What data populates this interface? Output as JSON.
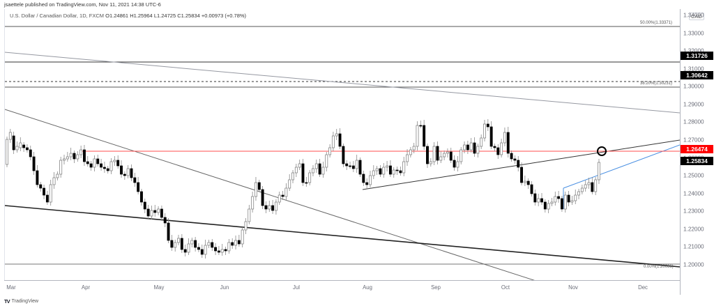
{
  "publisher": "jsaettele published on TradingView.com, Nov 11, 2021 14:38 UTC-6",
  "symbol": {
    "name": "U.S. Dollar / Canadian Dollar, 1D, FXCM",
    "open": "O1.24861",
    "high": "H1.25964",
    "low": "L1.24725",
    "close": "C1.25834",
    "change": "+0.00973 (+0.78%)"
  },
  "price_axis": {
    "currency": "CAD",
    "ticks": [
      "1.34000",
      "1.33000",
      "1.32000",
      "1.31000",
      "1.30000",
      "1.29000",
      "1.28000",
      "1.27000",
      "1.26000",
      "1.25000",
      "1.24000",
      "1.23000",
      "1.22000",
      "1.21000",
      "1.20000"
    ],
    "tags": [
      {
        "label": "1.31726",
        "bg": "#000000",
        "fg": "#ffffff"
      },
      {
        "label": "1.30642",
        "bg": "#000000",
        "fg": "#ffffff"
      },
      {
        "label": "1.26474",
        "bg": "#ff0000",
        "fg": "#ffffff"
      },
      {
        "label": "1.25834",
        "bg": "#000000",
        "fg": "#ffffff"
      }
    ]
  },
  "time_axis": {
    "months": [
      "Mar",
      "Apr",
      "May",
      "Jun",
      "Jul",
      "Aug",
      "Sep",
      "Oct",
      "Nov",
      "Dec"
    ]
  },
  "fib_labels": {
    "f50": "50.00%(1.33371)",
    "f382": "38.20%(1.30231)",
    "f0": "0.00%(1.20066)"
  },
  "footer": {
    "logo": "TV",
    "brand": "TradingView"
  },
  "colors": {
    "resistance": "#ff0000",
    "blue_channel": "#4a90e2",
    "bull_candle": "#ffffff",
    "bear_candle": "#000000"
  },
  "chart_data": {
    "type": "candlestick",
    "title": "U.S. Dollar / Canadian Dollar, 1D, FXCM",
    "xlabel": "",
    "ylabel": "CAD",
    "ylim": [
      1.195,
      1.345
    ],
    "x_ticks": [
      "Mar",
      "Apr",
      "May",
      "Jun",
      "Jul",
      "Aug",
      "Sep",
      "Oct",
      "Nov",
      "Dec"
    ],
    "last_ohlc": {
      "open": 1.24861,
      "high": 1.25964,
      "low": 1.24725,
      "close": 1.25834,
      "change": 0.00973,
      "change_pct": 0.78
    },
    "horizontal_levels": [
      {
        "label": "50.00% Fib",
        "value": 1.33371
      },
      {
        "label": "Level",
        "value": 1.31726
      },
      {
        "label": "Level (dashed)",
        "value": 1.30642
      },
      {
        "label": "38.20% Fib",
        "value": 1.30231
      },
      {
        "label": "Resistance (red)",
        "value": 1.26474
      },
      {
        "label": "0.00% Fib",
        "value": 1.20066
      }
    ],
    "monthly_approx_closes": {
      "x": [
        "Mar",
        "Apr",
        "May",
        "Jun",
        "Jul",
        "Aug",
        "Sep",
        "Oct",
        "Nov"
      ],
      "values": [
        1.262,
        1.258,
        1.228,
        1.206,
        1.245,
        1.262,
        1.265,
        1.24,
        1.258
      ]
    },
    "annotations": [
      "circle at resistance/trendline intersection ~1.2647 mid-Nov",
      "blue rising trendline from late Oct lows"
    ],
    "grid": false,
    "legend": "none"
  }
}
